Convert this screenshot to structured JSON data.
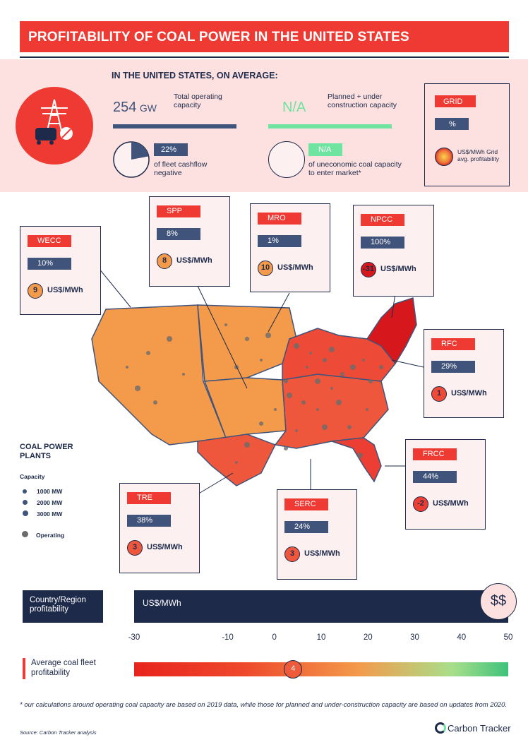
{
  "title": "PROFITABILITY OF COAL POWER IN THE UNITED STATES",
  "summary": {
    "heading": "IN THE UNITED STATES, ON AVERAGE:",
    "operating_value": "254",
    "operating_unit": "GW",
    "operating_label": "Total operating capacity",
    "planned_value": "N/A",
    "planned_label": "Planned + under construction capacity",
    "cashflow_pct": "22%",
    "cashflow_fraction": 0.22,
    "cashflow_label": "of fleet cashflow negative",
    "uneconomic_value": "N/A",
    "uneconomic_label": "of uneconomic coal capacity to enter market*"
  },
  "legend": {
    "grid_tag": "GRID",
    "pct_tag": "%",
    "profit_label": "US$/MWh Grid avg. profitability"
  },
  "regions": [
    {
      "name": "WECC",
      "pct": "10%",
      "value": "9",
      "unit": "US$/MWh",
      "color": "#f39a4b"
    },
    {
      "name": "SPP",
      "pct": "8%",
      "value": "8",
      "unit": "US$/MWh",
      "color": "#f39a4b"
    },
    {
      "name": "MRO",
      "pct": "1%",
      "value": "10",
      "unit": "US$/MWh",
      "color": "#f39a4b"
    },
    {
      "name": "NPCC",
      "pct": "100%",
      "value": "-31",
      "unit": "US$/MWh",
      "color": "#d6181c"
    },
    {
      "name": "RFC",
      "pct": "29%",
      "value": "1",
      "unit": "US$/MWh",
      "color": "#ee4a38"
    },
    {
      "name": "FRCC",
      "pct": "44%",
      "value": "-2",
      "unit": "US$/MWh",
      "color": "#ec3e32"
    },
    {
      "name": "TRE",
      "pct": "38%",
      "value": "3",
      "unit": "US$/MWh",
      "color": "#ef573c"
    },
    {
      "name": "SERC",
      "pct": "24%",
      "value": "3",
      "unit": "US$/MWh",
      "color": "#ef573c"
    }
  ],
  "plants_legend": {
    "title": "COAL POWER PLANTS",
    "capacity_label": "Capacity",
    "sizes": [
      "1000 MW",
      "2000 MW",
      "3000 MW"
    ],
    "status": "Operating"
  },
  "scale": {
    "left_label": "Country/Region profitability",
    "bar_label": "US$/MWh",
    "badge": "$$",
    "ticks": [
      "-30",
      "-10",
      "0",
      "10",
      "20",
      "30",
      "40",
      "50"
    ],
    "tick_values": [
      -30,
      -10,
      0,
      10,
      20,
      30,
      40,
      50
    ],
    "avg_label": "Average coal fleet profitability",
    "avg_value": "4",
    "avg_numeric": 4
  },
  "footnote": "* our calculations around operating coal capacity are based on 2019 data, while those for planned and under-construction capacity are based on updates from 2020.",
  "source": "Source: Carbon Tracker analysis",
  "logo_text": "Carbon Tracker"
}
